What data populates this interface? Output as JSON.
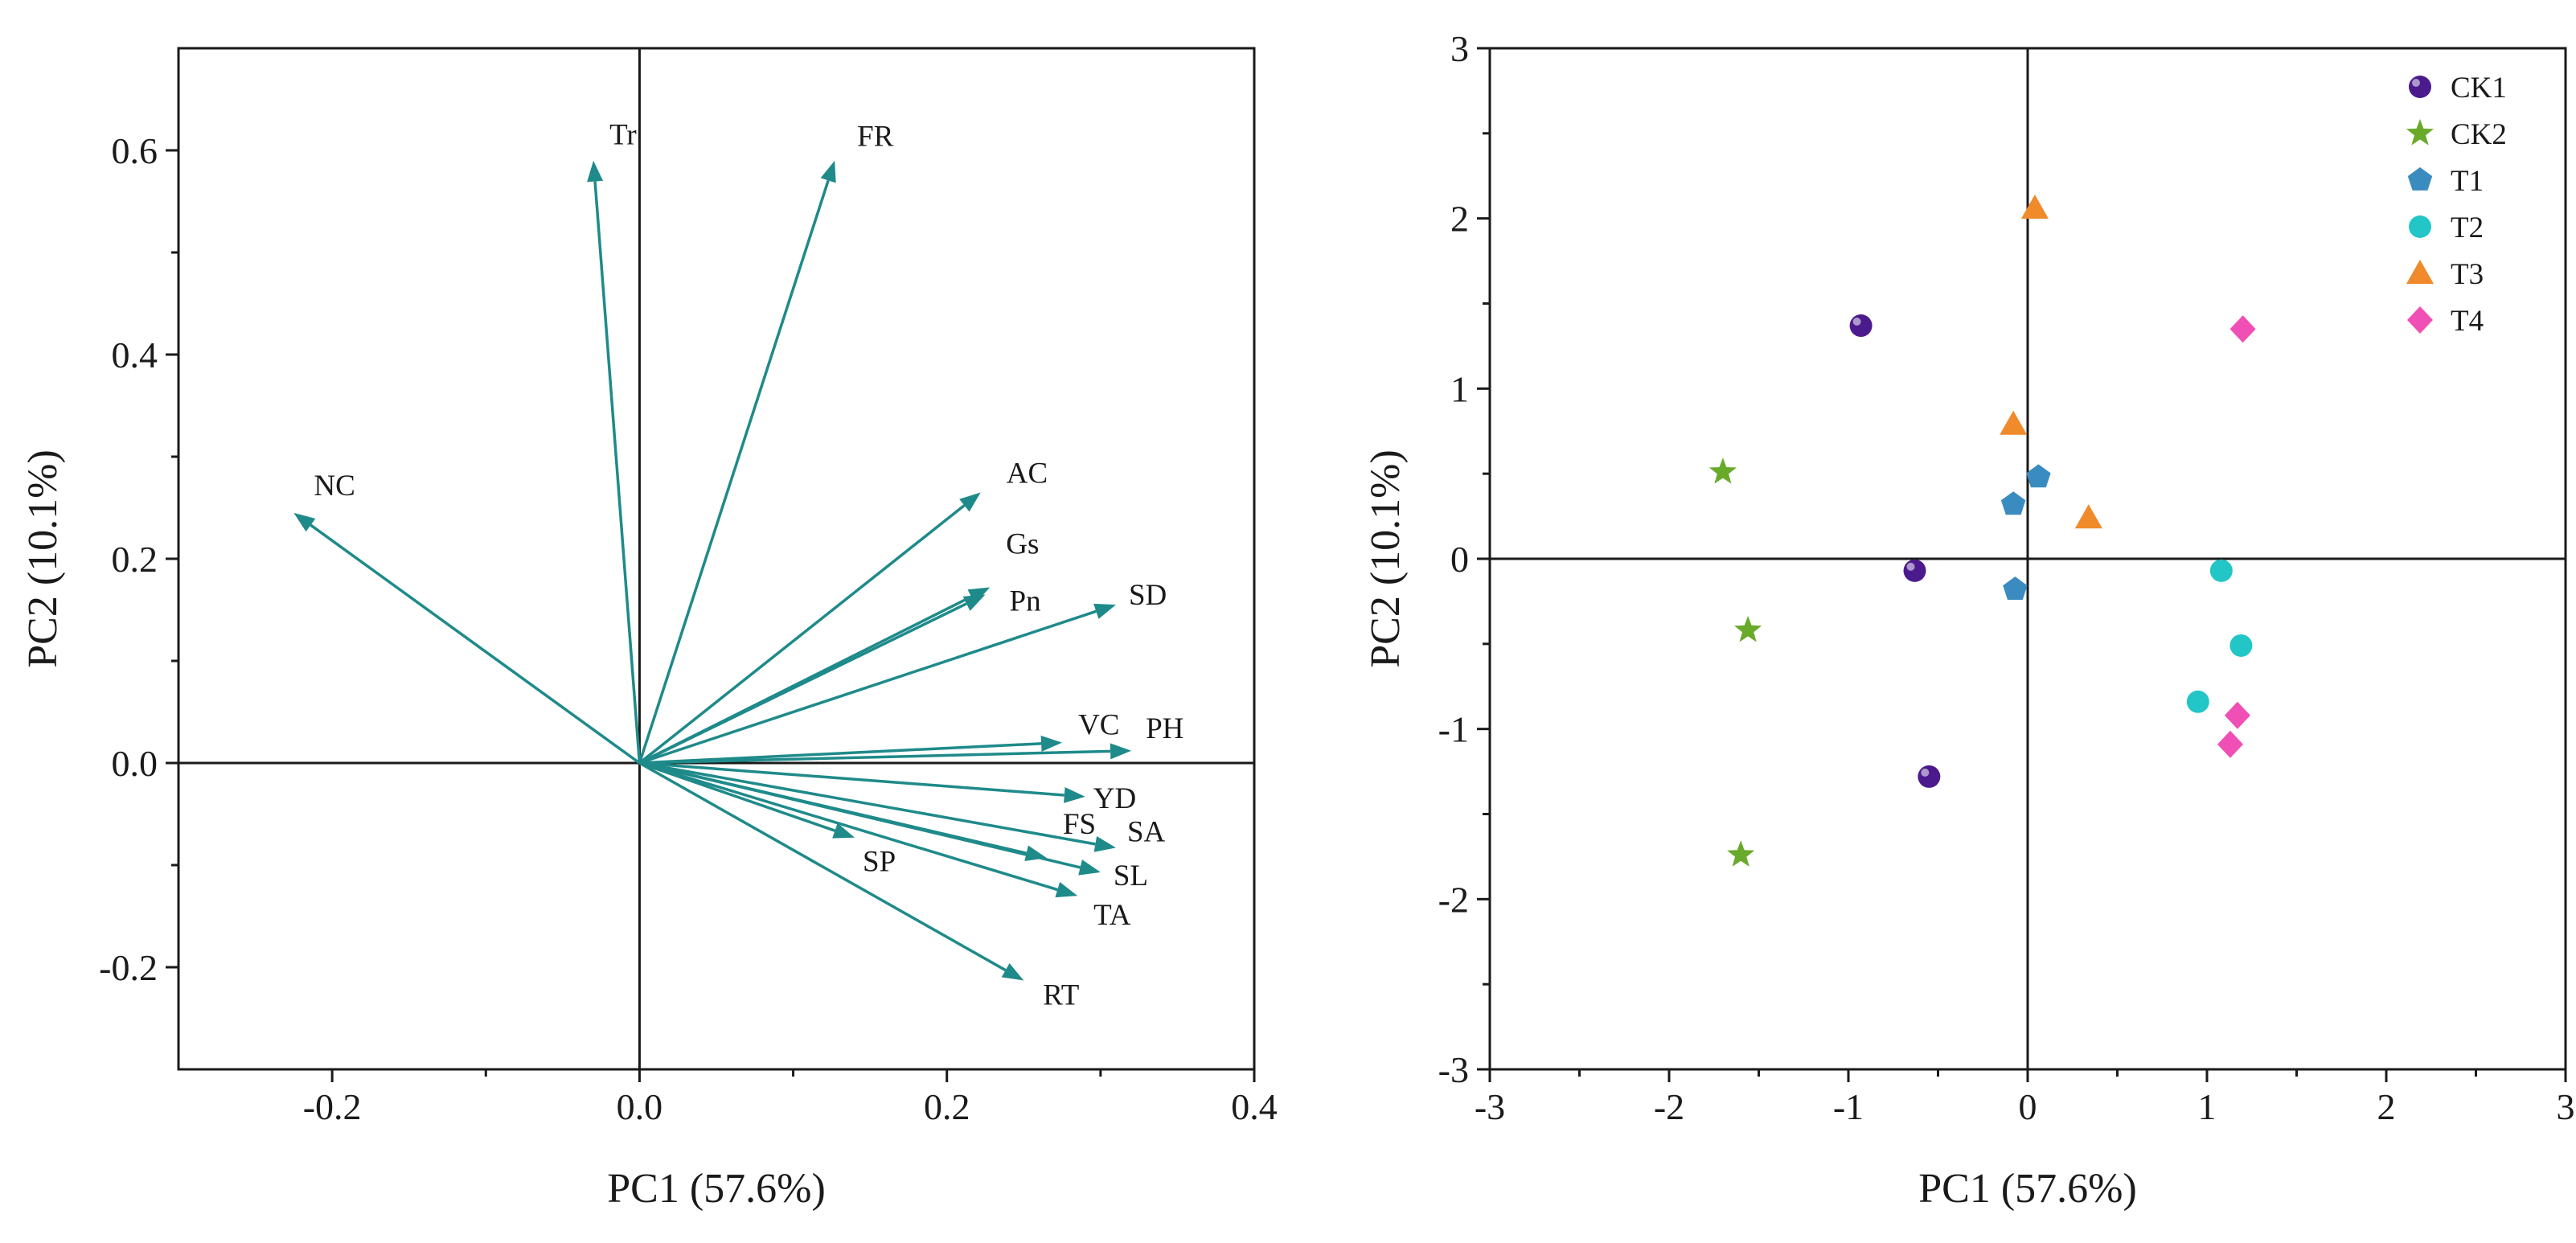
{
  "colors": {
    "axis": "#1a1a1a",
    "arrow": "#1f8a8a",
    "CK1": "#4b1a8c",
    "CK2": "#6aaa2a",
    "T1": "#3a8bc0",
    "T2": "#22c6c6",
    "T3": "#f08a2a",
    "T4": "#f04fb5"
  },
  "chart_data": [
    {
      "type": "biplot-loadings",
      "title": "",
      "xlabel": "PC1 (57.6%)",
      "ylabel": "PC2 (10.1%)",
      "xlim": [
        -0.3,
        0.4
      ],
      "ylim": [
        -0.3,
        0.7
      ],
      "xticks": [
        -0.2,
        0.0,
        0.2,
        0.4
      ],
      "yticks": [
        -0.2,
        0.0,
        0.2,
        0.4,
        0.6
      ],
      "xtick_labels": [
        "-0.2",
        "0.0",
        "0.2",
        "0.4"
      ],
      "ytick_labels": [
        "-0.2",
        "0.0",
        "0.2",
        "0.4",
        "0.6"
      ],
      "vectors": [
        {
          "label": "Tr",
          "x": -0.03,
          "y": 0.59
        },
        {
          "label": "FR",
          "x": 0.127,
          "y": 0.59
        },
        {
          "label": "NC",
          "x": -0.225,
          "y": 0.245
        },
        {
          "label": "AC",
          "x": 0.222,
          "y": 0.265
        },
        {
          "label": "Gs",
          "x": 0.228,
          "y": 0.172
        },
        {
          "label": "Pn",
          "x": 0.225,
          "y": 0.165
        },
        {
          "label": "SD",
          "x": 0.31,
          "y": 0.155
        },
        {
          "label": "VC",
          "x": 0.275,
          "y": 0.02
        },
        {
          "label": "PH",
          "x": 0.32,
          "y": 0.012
        },
        {
          "label": "YD",
          "x": 0.29,
          "y": -0.033
        },
        {
          "label": "FS",
          "x": 0.265,
          "y": -0.093
        },
        {
          "label": "SA",
          "x": 0.31,
          "y": -0.083
        },
        {
          "label": "SP",
          "x": 0.14,
          "y": -0.073
        },
        {
          "label": "SL",
          "x": 0.3,
          "y": -0.107
        },
        {
          "label": "TA",
          "x": 0.285,
          "y": -0.13
        },
        {
          "label": "RT",
          "x": 0.25,
          "y": -0.213
        }
      ]
    },
    {
      "type": "scatter",
      "title": "",
      "xlabel": "PC1 (57.6%)",
      "ylabel": "PC2 (10.1%)",
      "xlim": [
        -3,
        3
      ],
      "ylim": [
        -3,
        3
      ],
      "xticks": [
        -3,
        -2,
        -1,
        0,
        1,
        2,
        3
      ],
      "yticks": [
        -3,
        -2,
        -1,
        0,
        1,
        2,
        3
      ],
      "xtick_labels": [
        "-3",
        "-2",
        "-1",
        "0",
        "1",
        "2",
        "3"
      ],
      "ytick_labels": [
        "-3",
        "-2",
        "-1",
        "0",
        "1",
        "2",
        "3"
      ],
      "legend_position": "top-right",
      "series": [
        {
          "name": "CK1",
          "marker": "sphere",
          "points": [
            [
              -0.93,
              1.37
            ],
            [
              -0.63,
              -0.07
            ],
            [
              -0.55,
              -1.28
            ]
          ]
        },
        {
          "name": "CK2",
          "marker": "star",
          "points": [
            [
              -1.7,
              0.51
            ],
            [
              -1.56,
              -0.42
            ],
            [
              -1.6,
              -1.74
            ]
          ]
        },
        {
          "name": "T1",
          "marker": "pentagon",
          "points": [
            [
              0.06,
              0.48
            ],
            [
              -0.08,
              0.32
            ],
            [
              -0.07,
              -0.18
            ]
          ]
        },
        {
          "name": "T2",
          "marker": "circle",
          "points": [
            [
              1.08,
              -0.07
            ],
            [
              1.19,
              -0.51
            ],
            [
              0.95,
              -0.84
            ]
          ]
        },
        {
          "name": "T3",
          "marker": "triangle",
          "points": [
            [
              0.04,
              2.06
            ],
            [
              -0.08,
              0.79
            ],
            [
              0.34,
              0.24
            ]
          ]
        },
        {
          "name": "T4",
          "marker": "diamond",
          "points": [
            [
              1.2,
              1.35
            ],
            [
              1.17,
              -0.92
            ],
            [
              1.13,
              -1.09
            ]
          ]
        }
      ]
    }
  ]
}
